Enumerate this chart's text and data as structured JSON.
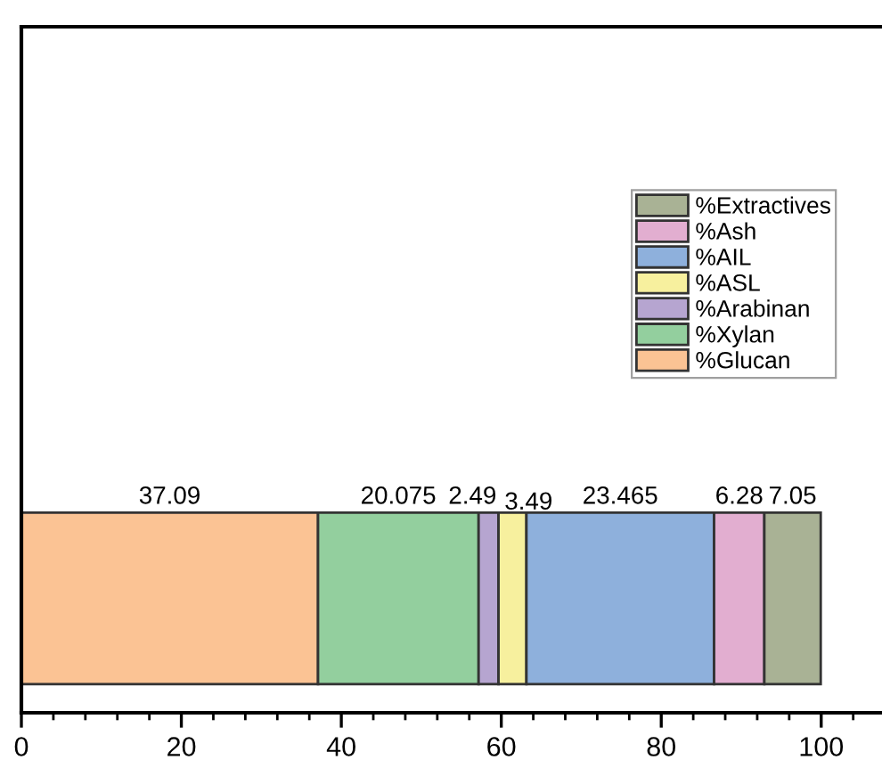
{
  "chart_data": {
    "type": "bar",
    "orientation": "horizontal",
    "stacked": true,
    "categories": [
      null
    ],
    "series": [
      {
        "name": "%Glucan",
        "color": "#fbc394",
        "values": [
          37.09
        ]
      },
      {
        "name": "%Xylan",
        "color": "#93cf9e",
        "values": [
          20.075
        ]
      },
      {
        "name": "%Arabinan",
        "color": "#b6a5d0",
        "values": [
          2.49
        ]
      },
      {
        "name": "%ASL",
        "color": "#f7f09e",
        "values": [
          3.49
        ]
      },
      {
        "name": "%AIL",
        "color": "#8eb0dc",
        "values": [
          23.465
        ]
      },
      {
        "name": "%Ash",
        "color": "#e2aed0",
        "values": [
          6.28
        ]
      },
      {
        "name": "%Extractives",
        "color": "#a9b295",
        "values": [
          7.05
        ]
      }
    ],
    "xlim": [
      0,
      107.6
    ],
    "xticks": [
      0,
      20,
      40,
      60,
      80,
      100
    ],
    "data_labels": true,
    "legend": "center right",
    "grid": false
  }
}
